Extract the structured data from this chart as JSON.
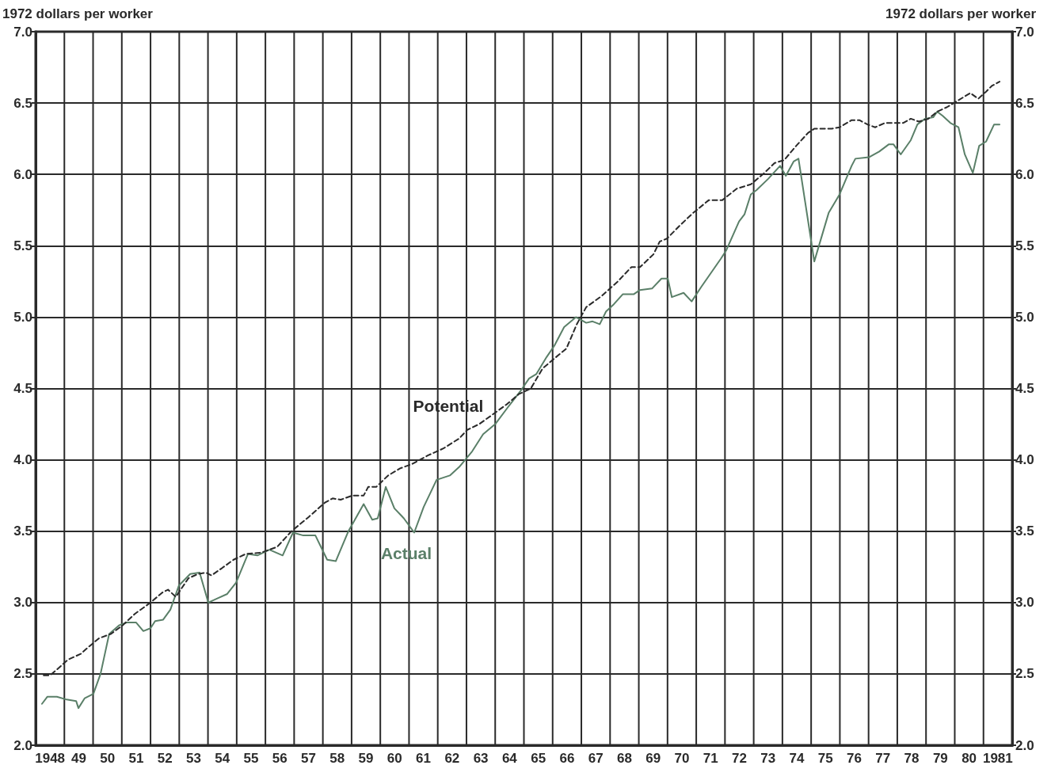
{
  "chart_data": {
    "type": "line",
    "ylabel": "1972 dollars per worker",
    "y2label": "1972 dollars per worker",
    "xlim": [
      1947.5,
      1981.5
    ],
    "xticks": [
      {
        "value": 1948,
        "label": "1948"
      },
      {
        "value": 1949,
        "label": "49"
      },
      {
        "value": 1950,
        "label": "50"
      },
      {
        "value": 1951,
        "label": "51"
      },
      {
        "value": 1952,
        "label": "52"
      },
      {
        "value": 1953,
        "label": "53"
      },
      {
        "value": 1954,
        "label": "54"
      },
      {
        "value": 1955,
        "label": "55"
      },
      {
        "value": 1956,
        "label": "56"
      },
      {
        "value": 1957,
        "label": "57"
      },
      {
        "value": 1958,
        "label": "58"
      },
      {
        "value": 1959,
        "label": "59"
      },
      {
        "value": 1960,
        "label": "60"
      },
      {
        "value": 1961,
        "label": "61"
      },
      {
        "value": 1962,
        "label": "62"
      },
      {
        "value": 1963,
        "label": "63"
      },
      {
        "value": 1964,
        "label": "64"
      },
      {
        "value": 1965,
        "label": "65"
      },
      {
        "value": 1966,
        "label": "66"
      },
      {
        "value": 1967,
        "label": "67"
      },
      {
        "value": 1968,
        "label": "68"
      },
      {
        "value": 1969,
        "label": "69"
      },
      {
        "value": 1970,
        "label": "70"
      },
      {
        "value": 1971,
        "label": "71"
      },
      {
        "value": 1972,
        "label": "72"
      },
      {
        "value": 1973,
        "label": "73"
      },
      {
        "value": 1974,
        "label": "74"
      },
      {
        "value": 1975,
        "label": "75"
      },
      {
        "value": 1976,
        "label": "76"
      },
      {
        "value": 1977,
        "label": "77"
      },
      {
        "value": 1978,
        "label": "78"
      },
      {
        "value": 1979,
        "label": "79"
      },
      {
        "value": 1980,
        "label": "80"
      },
      {
        "value": 1981,
        "label": "1981"
      }
    ],
    "ylim": [
      2,
      7
    ],
    "yticks": [
      {
        "value": 2,
        "label": "2.0"
      },
      {
        "value": 2.5,
        "label": "2.5"
      },
      {
        "value": 3,
        "label": "3.0"
      },
      {
        "value": 3.5,
        "label": "3.5"
      },
      {
        "value": 4,
        "label": "4.0"
      },
      {
        "value": 4.5,
        "label": "4.5"
      },
      {
        "value": 5,
        "label": "5.0"
      },
      {
        "value": 5.5,
        "label": "5.5"
      },
      {
        "value": 6,
        "label": "6.0"
      },
      {
        "value": 6.5,
        "label": "6.5"
      },
      {
        "value": 7,
        "label": "7.0"
      }
    ],
    "y2lim": [
      2,
      7
    ],
    "y2ticks": [
      {
        "value": 2,
        "label": "2.0"
      },
      {
        "value": 2.5,
        "label": "2.5"
      },
      {
        "value": 3,
        "label": "3.0"
      },
      {
        "value": 3.5,
        "label": "3.5"
      },
      {
        "value": 4,
        "label": "4.0"
      },
      {
        "value": 4.5,
        "label": "4.5"
      },
      {
        "value": 5,
        "label": "5.0"
      },
      {
        "value": 5.5,
        "label": "5.5"
      },
      {
        "value": 6,
        "label": "6.0"
      },
      {
        "value": 6.5,
        "label": "6.5"
      },
      {
        "value": 7,
        "label": "7.0"
      }
    ],
    "grid": true,
    "legend": false,
    "marker": "none",
    "series": [
      {
        "name": "Potential",
        "color": "#2a2a2a",
        "line_style": "dashed",
        "x": [
          1947.78,
          1948.0,
          1948.24,
          1948.63,
          1949.07,
          1949.35,
          1949.71,
          1950.12,
          1950.53,
          1950.95,
          1951.5,
          1951.91,
          1952.11,
          1952.38,
          1952.82,
          1953.15,
          1953.43,
          1953.62,
          1953.98,
          1954.39,
          1954.81,
          1955.36,
          1955.91,
          1956.41,
          1957.01,
          1957.57,
          1957.84,
          1958.12,
          1958.53,
          1958.92,
          1959.08,
          1959.36,
          1959.77,
          1960.19,
          1960.6,
          1961.15,
          1961.7,
          1962.25,
          1962.53,
          1962.94,
          1963.36,
          1963.91,
          1964.32,
          1964.74,
          1965.15,
          1965.56,
          1965.98,
          1966.34,
          1966.67,
          1967.22,
          1967.77,
          1968.24,
          1968.54,
          1969.01,
          1969.23,
          1969.48,
          1969.92,
          1970.39,
          1970.94,
          1971.41,
          1971.91,
          1972.4,
          1972.87,
          1973.23,
          1973.56,
          1973.98,
          1974.39,
          1974.61,
          1975.22,
          1975.49,
          1975.91,
          1976.18,
          1976.46,
          1976.73,
          1977.06,
          1977.7,
          1977.97,
          1978.25,
          1978.58,
          1978.89,
          1979.22,
          1979.63,
          1980.04,
          1980.32,
          1980.59,
          1980.79,
          1981.06
        ],
        "values": [
          2.49,
          2.49,
          2.53,
          2.6,
          2.64,
          2.69,
          2.75,
          2.78,
          2.84,
          2.92,
          3.0,
          3.07,
          3.09,
          3.04,
          3.17,
          3.2,
          3.21,
          3.19,
          3.24,
          3.3,
          3.34,
          3.35,
          3.39,
          3.5,
          3.6,
          3.7,
          3.73,
          3.72,
          3.75,
          3.75,
          3.81,
          3.81,
          3.89,
          3.94,
          3.97,
          4.03,
          4.08,
          4.15,
          4.21,
          4.25,
          4.31,
          4.39,
          4.46,
          4.5,
          4.64,
          4.71,
          4.78,
          4.95,
          5.07,
          5.15,
          5.25,
          5.35,
          5.35,
          5.44,
          5.53,
          5.55,
          5.64,
          5.73,
          5.82,
          5.82,
          5.9,
          5.93,
          6.01,
          6.08,
          6.1,
          6.2,
          6.29,
          6.32,
          6.32,
          6.33,
          6.38,
          6.38,
          6.35,
          6.33,
          6.36,
          6.36,
          6.39,
          6.37,
          6.39,
          6.44,
          6.47,
          6.52,
          6.57,
          6.53,
          6.58,
          6.62,
          6.65
        ]
      },
      {
        "name": "Actual",
        "color": "#5a7f68",
        "line_style": "solid",
        "x": [
          1947.72,
          1947.91,
          1948.24,
          1948.58,
          1948.91,
          1948.99,
          1949.21,
          1949.51,
          1949.76,
          1950.06,
          1950.4,
          1950.67,
          1951.0,
          1951.25,
          1951.5,
          1951.66,
          1951.94,
          1952.19,
          1952.49,
          1952.88,
          1953.21,
          1953.51,
          1953.84,
          1954.17,
          1954.48,
          1954.89,
          1955.22,
          1955.64,
          1956.1,
          1956.46,
          1956.82,
          1957.24,
          1957.65,
          1957.95,
          1958.39,
          1958.92,
          1959.22,
          1959.41,
          1959.69,
          1959.99,
          1960.32,
          1960.68,
          1961.01,
          1961.46,
          1961.92,
          1962.25,
          1962.7,
          1963.08,
          1963.5,
          1963.91,
          1964.41,
          1964.68,
          1964.93,
          1965.29,
          1965.56,
          1965.9,
          1966.31,
          1966.67,
          1966.89,
          1967.14,
          1967.36,
          1967.63,
          1967.94,
          1968.32,
          1968.54,
          1968.96,
          1969.29,
          1969.51,
          1969.65,
          1970.06,
          1970.34,
          1970.67,
          1971.36,
          1971.55,
          1971.99,
          1972.18,
          1972.4,
          1972.6,
          1973.01,
          1973.42,
          1973.62,
          1973.89,
          1974.06,
          1974.61,
          1975.11,
          1975.49,
          1975.91,
          1976.04,
          1976.51,
          1976.87,
          1977.2,
          1977.37,
          1977.62,
          1977.97,
          1978.2,
          1978.47,
          1978.75,
          1978.89,
          1979.08,
          1979.35,
          1979.63,
          1979.85,
          1980.13,
          1980.35,
          1980.59,
          1980.87,
          1981.06
        ],
        "values": [
          2.29,
          2.34,
          2.34,
          2.32,
          2.31,
          2.26,
          2.33,
          2.36,
          2.5,
          2.78,
          2.84,
          2.86,
          2.86,
          2.8,
          2.82,
          2.87,
          2.88,
          2.95,
          3.12,
          3.2,
          3.21,
          3.0,
          3.03,
          3.06,
          3.14,
          3.34,
          3.33,
          3.37,
          3.33,
          3.49,
          3.47,
          3.47,
          3.3,
          3.29,
          3.5,
          3.69,
          3.58,
          3.59,
          3.81,
          3.66,
          3.59,
          3.49,
          3.67,
          3.86,
          3.89,
          3.95,
          4.06,
          4.18,
          4.25,
          4.36,
          4.49,
          4.57,
          4.6,
          4.72,
          4.8,
          4.93,
          5.0,
          4.96,
          4.97,
          4.95,
          5.04,
          5.09,
          5.16,
          5.16,
          5.19,
          5.2,
          5.27,
          5.27,
          5.14,
          5.17,
          5.11,
          5.21,
          5.41,
          5.47,
          5.67,
          5.72,
          5.86,
          5.89,
          5.97,
          6.06,
          5.99,
          6.09,
          6.11,
          5.39,
          5.73,
          5.86,
          6.06,
          6.11,
          6.12,
          6.16,
          6.21,
          6.21,
          6.14,
          6.24,
          6.35,
          6.39,
          6.4,
          6.44,
          6.41,
          6.36,
          6.33,
          6.14,
          6.01,
          6.2,
          6.23,
          6.35,
          6.35
        ]
      }
    ]
  }
}
